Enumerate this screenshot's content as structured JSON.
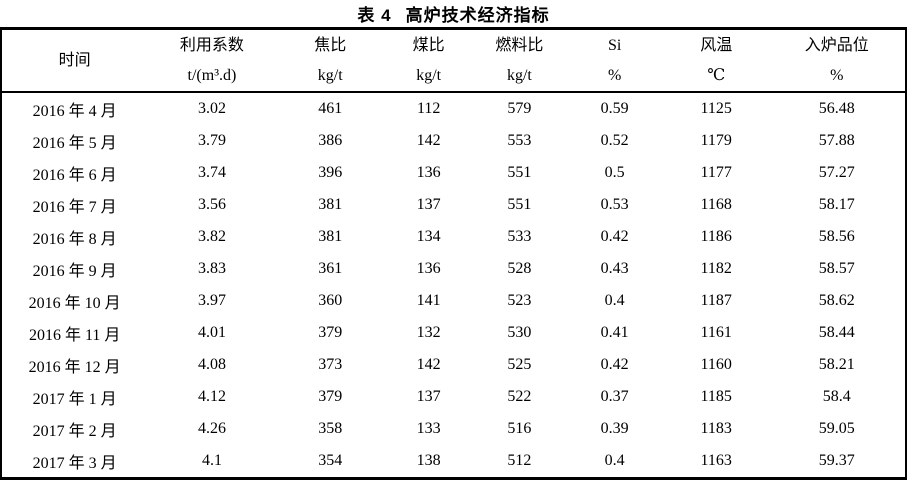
{
  "page": {
    "background_color": "#ffffff",
    "text_color": "#000000",
    "rule_color": "#000000"
  },
  "title": {
    "index": "表 4",
    "text": "高炉技术经济指标"
  },
  "table": {
    "columns": [
      {
        "label": "时间",
        "unit": ""
      },
      {
        "label": "利用系数",
        "unit": "t/(m³.d)"
      },
      {
        "label": "焦比",
        "unit": "kg/t"
      },
      {
        "label": "煤比",
        "unit": "kg/t"
      },
      {
        "label": "燃料比",
        "unit": "kg/t"
      },
      {
        "label": "Si",
        "unit": "%"
      },
      {
        "label": "风温",
        "unit": "℃"
      },
      {
        "label": "入炉品位",
        "unit": "%"
      }
    ],
    "rows": [
      {
        "time": "2016 年 4 月",
        "values": [
          "3.02",
          "461",
          "112",
          "579",
          "0.59",
          "1125",
          "56.48"
        ]
      },
      {
        "time": "2016 年 5 月",
        "values": [
          "3.79",
          "386",
          "142",
          "553",
          "0.52",
          "1179",
          "57.88"
        ]
      },
      {
        "time": "2016 年 6 月",
        "values": [
          "3.74",
          "396",
          "136",
          "551",
          "0.5",
          "1177",
          "57.27"
        ]
      },
      {
        "time": "2016 年 7 月",
        "values": [
          "3.56",
          "381",
          "137",
          "551",
          "0.53",
          "1168",
          "58.17"
        ]
      },
      {
        "time": "2016 年 8 月",
        "values": [
          "3.82",
          "381",
          "134",
          "533",
          "0.42",
          "1186",
          "58.56"
        ]
      },
      {
        "time": "2016 年 9 月",
        "values": [
          "3.83",
          "361",
          "136",
          "528",
          "0.43",
          "1182",
          "58.57"
        ]
      },
      {
        "time": "2016 年 10 月",
        "values": [
          "3.97",
          "360",
          "141",
          "523",
          "0.4",
          "1187",
          "58.62"
        ]
      },
      {
        "time": "2016 年 11 月",
        "values": [
          "4.01",
          "379",
          "132",
          "530",
          "0.41",
          "1161",
          "58.44"
        ]
      },
      {
        "time": "2016 年 12 月",
        "values": [
          "4.08",
          "373",
          "142",
          "525",
          "0.42",
          "1160",
          "58.21"
        ]
      },
      {
        "time": "2017 年 1 月",
        "values": [
          "4.12",
          "379",
          "137",
          "522",
          "0.37",
          "1185",
          "58.4"
        ]
      },
      {
        "time": "2017 年 2 月",
        "values": [
          "4.26",
          "358",
          "133",
          "516",
          "0.39",
          "1183",
          "59.05"
        ]
      },
      {
        "time": "2017 年 3 月",
        "values": [
          "4.1",
          "354",
          "138",
          "512",
          "0.4",
          "1163",
          "59.37"
        ]
      }
    ]
  }
}
